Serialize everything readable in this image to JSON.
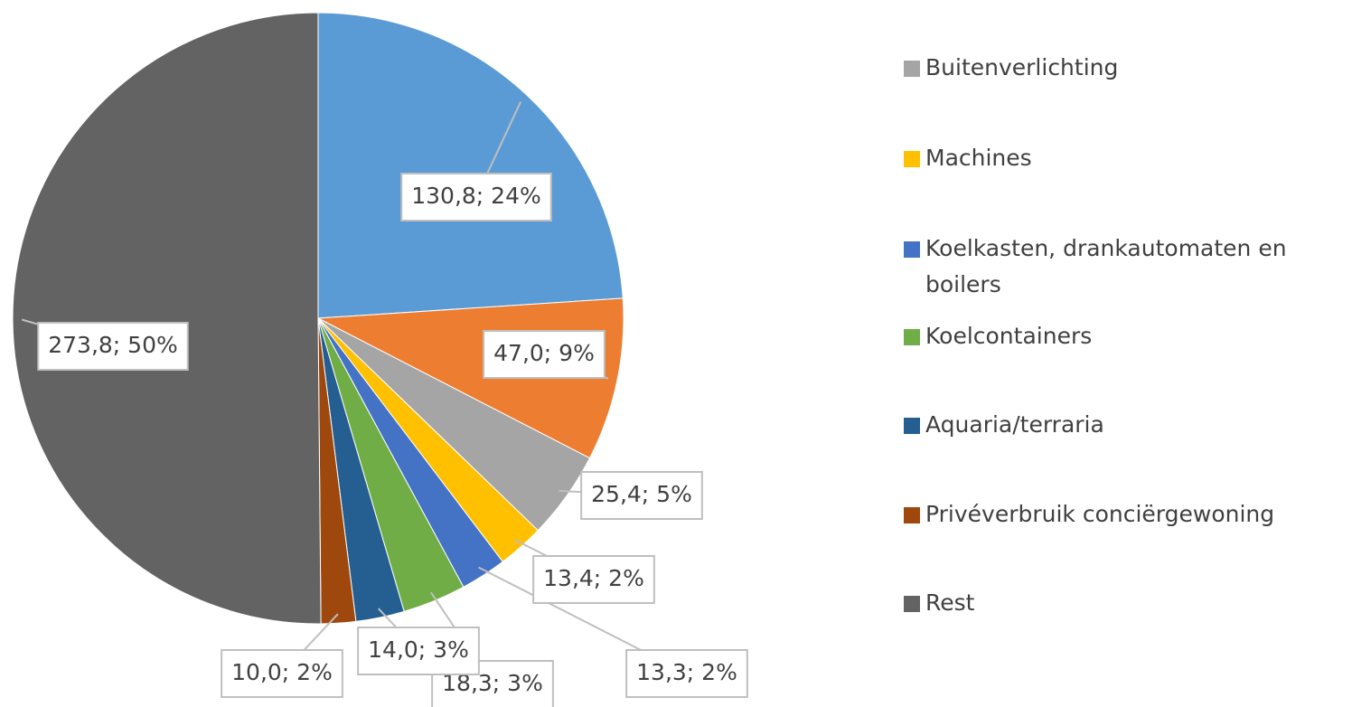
{
  "chart_data": {
    "type": "pie",
    "categories": [
      null,
      null,
      "Buitenverlichting",
      "Machines",
      "Koelkasten, drankautomaten en boilers",
      "Koelcontainers",
      "Aquaria/terraria",
      "Privéverbruik conciërgewoning",
      "Rest"
    ],
    "values": [
      130.8,
      47.0,
      25.4,
      13.4,
      13.3,
      18.3,
      14.0,
      10.0,
      273.8
    ],
    "value_labels": [
      "130,8; 24%",
      "47,0; 9%",
      "25,4; 5%",
      "13,4; 2%",
      "13,3; 2%",
      "18,3; 3%",
      "14,0; 3%",
      "10,0; 2%",
      "273,8; 50%"
    ],
    "colors": [
      "#5b9bd5",
      "#ed7d31",
      "#a5a5a5",
      "#ffc000",
      "#4472c4",
      "#70ad47",
      "#255e91",
      "#9e480e",
      "#636363"
    ],
    "legend": "right"
  }
}
